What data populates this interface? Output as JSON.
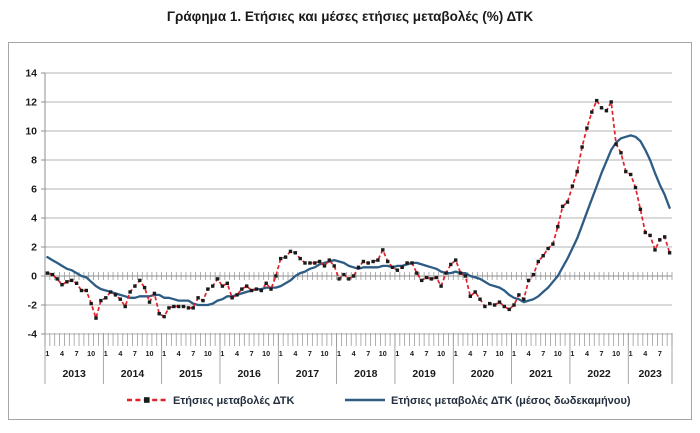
{
  "title": "Γράφημα 1. Ετήσιες και μέσες ετήσιες μεταβολές (%) ΔΤΚ",
  "legend": {
    "items": [
      {
        "label": "Ετήσιες μεταβολές ΔΤΚ",
        "style": "dashed-with-square-marker",
        "color": "#e0202a",
        "marker_color": "#1a1a1a"
      },
      {
        "label": "Ετήσιες μεταβολές ΔΤΚ (μέσος δωδεκαμήνου)",
        "style": "solid",
        "color": "#2d5c85"
      }
    ],
    "position": "bottom"
  },
  "chart_data": {
    "type": "line",
    "title": "Γράφημα 1. Ετήσιες και μέσες ετήσιες μεταβολές (%) ΔΤΚ",
    "ylim": [
      -4,
      14
    ],
    "y_ticks": [
      14,
      12,
      10,
      8,
      6,
      4,
      2,
      0,
      -2,
      -4
    ],
    "grid": true,
    "legend_position": "bottom",
    "years": [
      "2013",
      "2014",
      "2015",
      "2016",
      "2017",
      "2018",
      "2019",
      "2020",
      "2021",
      "2022",
      "2023"
    ],
    "month_tick_labels": [
      "1",
      "4",
      "7",
      "10"
    ],
    "month_label_offsets": [
      0,
      3,
      6,
      9
    ],
    "n_months": 129,
    "start": "2013-01",
    "end": "2023-09",
    "series": [
      {
        "name": "Ετήσιες μεταβολές ΔΤΚ",
        "style": "dashed",
        "color": "#e0202a",
        "marker": "square",
        "marker_color": "#1a1a1a",
        "values": [
          0.2,
          0.1,
          -0.2,
          -0.6,
          -0.4,
          -0.3,
          -0.5,
          -1.0,
          -1.0,
          -1.9,
          -2.9,
          -1.7,
          -1.5,
          -1.1,
          -1.3,
          -1.6,
          -2.1,
          -1.1,
          -0.7,
          -0.3,
          -0.8,
          -1.8,
          -1.2,
          -2.6,
          -2.8,
          -2.2,
          -2.1,
          -2.1,
          -2.1,
          -2.2,
          -2.2,
          -1.5,
          -1.7,
          -0.9,
          -0.7,
          -0.2,
          -0.7,
          -0.5,
          -1.5,
          -1.3,
          -0.9,
          -0.7,
          -1.0,
          -0.9,
          -1.0,
          -0.5,
          -0.9,
          0.0,
          1.2,
          1.3,
          1.7,
          1.6,
          1.2,
          0.9,
          0.9,
          0.9,
          1.0,
          0.7,
          1.1,
          0.7,
          -0.2,
          0.1,
          -0.2,
          0.0,
          0.6,
          1.0,
          0.9,
          1.0,
          1.1,
          1.8,
          1.0,
          0.6,
          0.4,
          0.6,
          0.9,
          0.9,
          0.2,
          -0.3,
          -0.1,
          -0.2,
          -0.1,
          -0.7,
          0.2,
          0.8,
          1.1,
          0.2,
          0.0,
          -1.4,
          -1.1,
          -1.6,
          -2.1,
          -1.9,
          -2.0,
          -1.8,
          -2.1,
          -2.3,
          -2.0,
          -1.3,
          -1.6,
          -0.3,
          0.1,
          1.0,
          1.4,
          1.9,
          2.2,
          3.4,
          4.8,
          5.1,
          6.2,
          7.2,
          8.9,
          10.2,
          11.3,
          12.1,
          11.6,
          11.4,
          12.0,
          9.1,
          8.5,
          7.2,
          7.0,
          6.1,
          4.6,
          3.0,
          2.8,
          1.8,
          2.5,
          2.7,
          1.6
        ]
      },
      {
        "name": "Ετήσιες μεταβολές ΔΤΚ (μέσος δωδεκαμήνου)",
        "style": "solid",
        "color": "#2d5c85",
        "marker": "none",
        "values": [
          1.3,
          1.1,
          0.9,
          0.7,
          0.5,
          0.4,
          0.2,
          0.0,
          -0.1,
          -0.4,
          -0.7,
          -0.9,
          -1.0,
          -1.1,
          -1.2,
          -1.3,
          -1.4,
          -1.5,
          -1.5,
          -1.4,
          -1.4,
          -1.4,
          -1.3,
          -1.3,
          -1.5,
          -1.5,
          -1.6,
          -1.7,
          -1.7,
          -1.7,
          -1.9,
          -2.0,
          -2.0,
          -2.0,
          -1.9,
          -1.7,
          -1.6,
          -1.4,
          -1.4,
          -1.3,
          -1.2,
          -1.1,
          -1.0,
          -0.9,
          -0.9,
          -0.8,
          -0.8,
          -0.8,
          -0.7,
          -0.5,
          -0.3,
          0.0,
          0.2,
          0.3,
          0.5,
          0.6,
          0.8,
          0.9,
          1.0,
          1.1,
          1.0,
          0.9,
          0.7,
          0.6,
          0.5,
          0.6,
          0.6,
          0.6,
          0.6,
          0.7,
          0.7,
          0.6,
          0.7,
          0.7,
          0.8,
          0.9,
          0.9,
          0.8,
          0.7,
          0.6,
          0.5,
          0.3,
          0.2,
          0.2,
          0.3,
          0.2,
          0.2,
          0.0,
          -0.1,
          -0.2,
          -0.4,
          -0.6,
          -0.7,
          -0.8,
          -1.0,
          -1.3,
          -1.5,
          -1.6,
          -1.8,
          -1.7,
          -1.6,
          -1.4,
          -1.1,
          -0.8,
          -0.4,
          0.0,
          0.6,
          1.2,
          1.9,
          2.6,
          3.5,
          4.4,
          5.3,
          6.2,
          7.1,
          7.9,
          8.7,
          9.2,
          9.5,
          9.6,
          9.7,
          9.6,
          9.3,
          8.7,
          8.0,
          7.1,
          6.3,
          5.6,
          4.7
        ]
      }
    ]
  }
}
